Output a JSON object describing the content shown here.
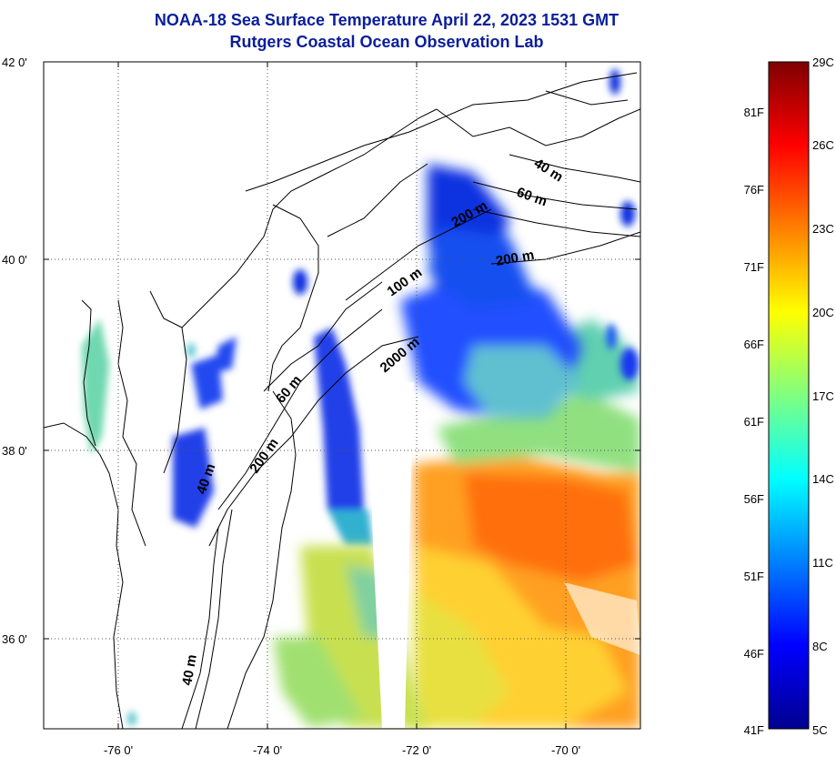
{
  "title": {
    "line1": "NOAA-18 Sea Surface Temperature April 22, 2023 1531 GMT",
    "line2": "Rutgers Coastal Ocean Observation Lab"
  },
  "map": {
    "lat_labels": [
      "42 0'",
      "40 0'",
      "38 0'",
      "36 0'"
    ],
    "lon_labels": [
      "-76 0'",
      "-74 0'",
      "-72 0'",
      "-70 0'"
    ],
    "contour_labels": [
      "40 m",
      "60 m",
      "200 m",
      "100 m",
      "2000 m",
      "60 m",
      "200 m",
      "40 m",
      "40 m",
      "200 m"
    ]
  },
  "colorbar": {
    "fahrenheit_labels": [
      "81F",
      "76F",
      "71F",
      "66F",
      "61F",
      "56F",
      "51F",
      "46F",
      "41F"
    ],
    "celsius_labels": [
      "29C",
      "26C",
      "23C",
      "20C",
      "17C",
      "14C",
      "11C",
      "8C",
      "5C"
    ],
    "colors": [
      "#7f0000",
      "#ff0000",
      "#ff8000",
      "#ffff00",
      "#80ff80",
      "#00ffff",
      "#0080ff",
      "#0000ff",
      "#00008f"
    ]
  }
}
